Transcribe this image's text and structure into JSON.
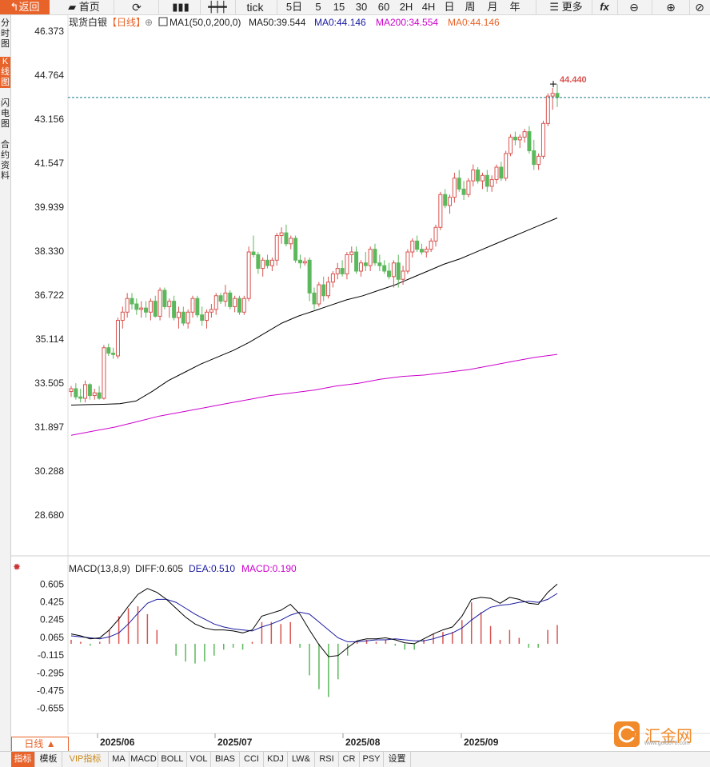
{
  "toolbar": {
    "back": "返回",
    "home": "首页",
    "tick": "tick",
    "periods": [
      "5日",
      "5",
      "15",
      "30",
      "60",
      "2H",
      "4H",
      "日",
      "周",
      "月",
      "年"
    ],
    "more": "更多",
    "fx": "fx"
  },
  "left_tabs": [
    "分时图",
    "K线图",
    "闪电图",
    "合约资料"
  ],
  "header": {
    "name": "现货白银",
    "period": "【日线】",
    "ma1": "MA1(50,0,200,0)",
    "ma50": "MA50:39.544",
    "ma0a": "MA0:44.146",
    "ma200": "MA200:34.554",
    "ma0b": "MA0:44.146"
  },
  "macd_header": {
    "name": "MACD(13,8,9)",
    "diff": "DIFF:0.605",
    "dea": "DEA:0.510",
    "macd": "MACD:0.190"
  },
  "colors": {
    "up": "#d9534f",
    "down": "#5cb85c",
    "ma50": "#000000",
    "ma200": "#cc00cc",
    "diff": "#000000",
    "dea": "#1a1aa0",
    "accent": "#e8632a",
    "price_line": "#1a7a8a"
  },
  "day_button": "日线 ▲",
  "bottom_tabs": [
    "指标",
    "模板",
    "VIP指标",
    "MA",
    "MACD",
    "BOLL",
    "VOL",
    "BIAS",
    "CCI",
    "KDJ",
    "LW&",
    "RSI",
    "CR",
    "PSY",
    "设置"
  ],
  "logo": {
    "name": "汇金网",
    "url": "www.gold678.com"
  },
  "chart_data": [
    {
      "type": "candlestick",
      "title": "现货白银 日线",
      "y_ticks": [
        "46.373",
        "44.764",
        "43.156",
        "41.547",
        "39.939",
        "38.330",
        "36.722",
        "35.114",
        "33.505",
        "31.897",
        "30.288",
        "28.680"
      ],
      "ylim": [
        28.68,
        46.373
      ],
      "x_labels": [
        "2025/06",
        "2025/07",
        "2025/08",
        "2025/09"
      ],
      "last_price_label": "44.440",
      "ohlc": [
        [
          33.2,
          33.4,
          33.0,
          33.3
        ],
        [
          33.3,
          33.5,
          32.9,
          33.0
        ],
        [
          33.0,
          33.3,
          32.8,
          32.95
        ],
        [
          32.95,
          33.6,
          32.8,
          33.45
        ],
        [
          33.45,
          33.5,
          32.9,
          33.05
        ],
        [
          33.05,
          33.3,
          32.9,
          33.15
        ],
        [
          33.15,
          33.4,
          32.9,
          32.95
        ],
        [
          32.95,
          34.9,
          32.9,
          34.8
        ],
        [
          34.8,
          34.95,
          34.5,
          34.6
        ],
        [
          34.6,
          34.8,
          34.4,
          34.55
        ],
        [
          34.5,
          35.9,
          34.4,
          35.8
        ],
        [
          35.8,
          36.3,
          35.5,
          36.1
        ],
        [
          36.1,
          36.8,
          35.9,
          36.6
        ],
        [
          36.6,
          36.8,
          36.2,
          36.4
        ],
        [
          36.4,
          36.6,
          36.0,
          36.2
        ],
        [
          36.2,
          36.5,
          35.9,
          36.25
        ],
        [
          36.25,
          36.5,
          35.9,
          36.1
        ],
        [
          36.1,
          36.6,
          35.8,
          36.5
        ],
        [
          36.5,
          36.7,
          35.9,
          35.95
        ],
        [
          35.95,
          37.0,
          35.8,
          36.9
        ],
        [
          36.9,
          37.0,
          36.2,
          36.3
        ],
        [
          36.3,
          36.6,
          35.9,
          36.5
        ],
        [
          36.5,
          36.7,
          35.8,
          35.9
        ],
        [
          35.9,
          36.3,
          35.5,
          36.1
        ],
        [
          36.1,
          36.3,
          35.6,
          35.7
        ],
        [
          35.7,
          36.2,
          35.5,
          36.1
        ],
        [
          36.1,
          36.7,
          35.9,
          36.6
        ],
        [
          36.6,
          36.7,
          35.9,
          36.0
        ],
        [
          36.0,
          36.3,
          35.6,
          35.8
        ],
        [
          35.8,
          36.2,
          35.5,
          36.1
        ],
        [
          36.1,
          36.4,
          35.9,
          36.2
        ],
        [
          36.2,
          36.8,
          36.0,
          36.7
        ],
        [
          36.7,
          36.8,
          36.4,
          36.5
        ],
        [
          36.5,
          37.1,
          36.3,
          36.8
        ],
        [
          36.8,
          36.9,
          36.2,
          36.3
        ],
        [
          36.3,
          36.7,
          36.1,
          36.6
        ],
        [
          36.6,
          36.7,
          36.0,
          36.1
        ],
        [
          36.1,
          36.7,
          36.0,
          36.6
        ],
        [
          36.6,
          38.5,
          36.5,
          38.3
        ],
        [
          38.3,
          38.9,
          38.1,
          38.2
        ],
        [
          38.2,
          38.3,
          37.5,
          37.7
        ],
        [
          37.7,
          38.1,
          37.4,
          38.0
        ],
        [
          38.0,
          38.2,
          37.7,
          37.8
        ],
        [
          37.8,
          38.1,
          37.6,
          38.0
        ],
        [
          38.0,
          39.0,
          37.8,
          38.9
        ],
        [
          38.9,
          39.2,
          38.6,
          39.0
        ],
        [
          39.0,
          39.3,
          38.5,
          38.6
        ],
        [
          38.6,
          38.9,
          38.4,
          38.8
        ],
        [
          38.8,
          38.9,
          37.9,
          38.0
        ],
        [
          38.0,
          38.2,
          37.7,
          37.9
        ],
        [
          37.9,
          38.1,
          37.8,
          37.95
        ],
        [
          38.0,
          38.1,
          36.5,
          36.8
        ],
        [
          36.8,
          37.0,
          36.2,
          36.4
        ],
        [
          36.4,
          37.2,
          36.3,
          37.1
        ],
        [
          37.1,
          37.4,
          36.5,
          36.7
        ],
        [
          36.7,
          37.4,
          36.6,
          37.2
        ],
        [
          37.2,
          37.6,
          37.0,
          37.5
        ],
        [
          37.5,
          37.9,
          37.3,
          37.7
        ],
        [
          37.7,
          38.0,
          37.4,
          37.5
        ],
        [
          37.5,
          38.3,
          37.3,
          38.2
        ],
        [
          38.2,
          38.5,
          37.9,
          38.3
        ],
        [
          38.3,
          38.5,
          37.5,
          37.6
        ],
        [
          37.6,
          38.0,
          37.4,
          37.9
        ],
        [
          37.9,
          38.3,
          37.6,
          37.8
        ],
        [
          37.8,
          38.5,
          37.6,
          38.4
        ],
        [
          38.4,
          38.6,
          37.8,
          37.9
        ],
        [
          37.9,
          38.2,
          37.6,
          37.8
        ],
        [
          37.8,
          38.0,
          37.5,
          37.6
        ],
        [
          37.6,
          37.9,
          37.3,
          37.4
        ],
        [
          37.4,
          38.0,
          37.0,
          37.9
        ],
        [
          37.9,
          38.2,
          37.0,
          37.3
        ],
        [
          37.3,
          37.8,
          37.1,
          37.6
        ],
        [
          37.6,
          38.4,
          37.5,
          38.3
        ],
        [
          38.3,
          38.8,
          38.1,
          38.7
        ],
        [
          38.7,
          38.9,
          38.3,
          38.4
        ],
        [
          38.4,
          38.6,
          38.2,
          38.3
        ],
        [
          38.3,
          38.5,
          38.1,
          38.4
        ],
        [
          38.4,
          38.8,
          38.3,
          38.7
        ],
        [
          38.7,
          39.3,
          38.5,
          39.2
        ],
        [
          39.2,
          40.5,
          39.1,
          40.4
        ],
        [
          40.4,
          40.6,
          39.9,
          40.0
        ],
        [
          40.0,
          40.4,
          39.7,
          40.3
        ],
        [
          40.3,
          41.2,
          40.1,
          41.0
        ],
        [
          41.0,
          41.3,
          40.5,
          40.6
        ],
        [
          40.6,
          40.9,
          40.2,
          40.4
        ],
        [
          40.4,
          41.0,
          40.3,
          40.9
        ],
        [
          40.9,
          41.5,
          40.7,
          41.3
        ],
        [
          41.3,
          41.4,
          40.8,
          40.9
        ],
        [
          40.9,
          41.2,
          40.6,
          41.1
        ],
        [
          41.1,
          41.3,
          40.5,
          40.7
        ],
        [
          40.7,
          41.1,
          40.5,
          40.95
        ],
        [
          40.95,
          41.5,
          40.8,
          41.4
        ],
        [
          41.4,
          41.6,
          40.9,
          41.0
        ],
        [
          41.0,
          42.0,
          40.9,
          41.9
        ],
        [
          41.9,
          42.6,
          41.8,
          42.5
        ],
        [
          42.5,
          42.7,
          42.2,
          42.4
        ],
        [
          42.4,
          42.6,
          42.1,
          42.5
        ],
        [
          42.5,
          42.8,
          42.3,
          42.7
        ],
        [
          42.7,
          42.9,
          41.9,
          42.0
        ],
        [
          42.0,
          42.4,
          41.3,
          41.5
        ],
        [
          41.5,
          41.9,
          41.3,
          41.8
        ],
        [
          41.8,
          43.1,
          41.7,
          43.0
        ],
        [
          43.0,
          44.1,
          42.9,
          44.0
        ],
        [
          44.0,
          44.3,
          43.5,
          44.1
        ],
        [
          44.1,
          44.44,
          43.6,
          43.95
        ]
      ],
      "ma50": [
        32.7,
        32.72,
        32.73,
        32.75,
        32.85,
        33.2,
        33.6,
        33.9,
        34.2,
        34.45,
        34.7,
        35.0,
        35.35,
        35.7,
        35.95,
        36.15,
        36.35,
        36.55,
        36.7,
        36.9,
        37.1,
        37.35,
        37.6,
        37.85,
        38.05,
        38.3,
        38.55,
        38.8,
        39.05,
        39.3,
        39.544
      ],
      "ma200": [
        31.6,
        31.75,
        31.9,
        32.1,
        32.3,
        32.45,
        32.6,
        32.75,
        32.9,
        33.05,
        33.15,
        33.25,
        33.4,
        33.5,
        33.65,
        33.75,
        33.8,
        33.9,
        34.0,
        34.15,
        34.3,
        34.45,
        34.554
      ]
    },
    {
      "type": "macd",
      "title": "MACD(13,8,9)",
      "y_ticks": [
        "0.605",
        "0.425",
        "0.245",
        "0.065",
        "-0.115",
        "-0.295",
        "-0.475",
        "-0.655"
      ],
      "ylim": [
        -0.73,
        0.68
      ],
      "diff": [
        0.1,
        0.08,
        0.05,
        0.06,
        0.14,
        0.25,
        0.38,
        0.5,
        0.56,
        0.52,
        0.45,
        0.36,
        0.27,
        0.2,
        0.16,
        0.14,
        0.14,
        0.13,
        0.11,
        0.14,
        0.28,
        0.31,
        0.34,
        0.4,
        0.3,
        0.14,
        -0.01,
        -0.13,
        -0.12,
        -0.04,
        0.03,
        0.05,
        0.05,
        0.06,
        0.04,
        0.01,
        0.0,
        0.05,
        0.1,
        0.14,
        0.17,
        0.28,
        0.45,
        0.47,
        0.46,
        0.41,
        0.47,
        0.45,
        0.41,
        0.4,
        0.52,
        0.605
      ],
      "dea": [
        0.08,
        0.07,
        0.06,
        0.05,
        0.07,
        0.11,
        0.2,
        0.31,
        0.41,
        0.45,
        0.45,
        0.42,
        0.36,
        0.3,
        0.25,
        0.2,
        0.17,
        0.15,
        0.14,
        0.13,
        0.17,
        0.2,
        0.24,
        0.29,
        0.32,
        0.3,
        0.22,
        0.14,
        0.06,
        0.02,
        0.02,
        0.03,
        0.04,
        0.04,
        0.05,
        0.04,
        0.03,
        0.03,
        0.05,
        0.08,
        0.11,
        0.16,
        0.24,
        0.31,
        0.37,
        0.39,
        0.4,
        0.42,
        0.43,
        0.42,
        0.45,
        0.51
      ],
      "macd": [
        0.04,
        0.02,
        -0.02,
        0.02,
        0.14,
        0.28,
        0.36,
        0.38,
        0.3,
        0.14,
        0.0,
        -0.12,
        -0.18,
        -0.2,
        -0.18,
        -0.12,
        -0.06,
        -0.04,
        -0.06,
        0.02,
        0.22,
        0.22,
        0.2,
        0.22,
        -0.04,
        -0.32,
        -0.46,
        -0.54,
        -0.36,
        -0.12,
        0.02,
        0.04,
        0.02,
        0.04,
        -0.02,
        -0.06,
        -0.06,
        0.04,
        0.1,
        0.12,
        0.12,
        0.24,
        0.42,
        0.32,
        0.18,
        0.04,
        0.14,
        0.06,
        -0.04,
        -0.04,
        0.14,
        0.19
      ]
    }
  ]
}
